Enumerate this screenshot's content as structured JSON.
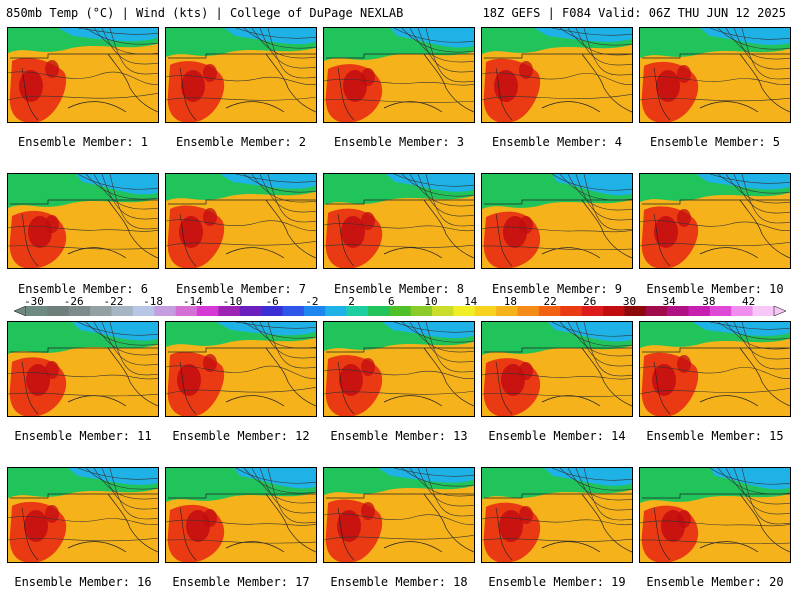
{
  "header": {
    "left": "850mb Temp (°C) | Wind (kts) | College of DuPage NEXLAB",
    "right": "18Z GEFS | F084 Valid: 06Z THU JUN 12 2025"
  },
  "panels": [
    {
      "label": "Ensemble Member: 1"
    },
    {
      "label": "Ensemble Member: 2"
    },
    {
      "label": "Ensemble Member: 3"
    },
    {
      "label": "Ensemble Member: 4"
    },
    {
      "label": "Ensemble Member: 5"
    },
    {
      "label": "Ensemble Member: 6"
    },
    {
      "label": "Ensemble Member: 7"
    },
    {
      "label": "Ensemble Member: 8"
    },
    {
      "label": "Ensemble Member: 9"
    },
    {
      "label": "Ensemble Member: 10"
    },
    {
      "label": "Ensemble Member: 11"
    },
    {
      "label": "Ensemble Member: 12"
    },
    {
      "label": "Ensemble Member: 13"
    },
    {
      "label": "Ensemble Member: 14"
    },
    {
      "label": "Ensemble Member: 15"
    },
    {
      "label": "Ensemble Member: 16"
    },
    {
      "label": "Ensemble Member: 17"
    },
    {
      "label": "Ensemble Member: 18"
    },
    {
      "label": "Ensemble Member: 19"
    },
    {
      "label": "Ensemble Member: 20"
    }
  ],
  "colorbar": {
    "tick_labels": [
      "-30",
      "-26",
      "-22",
      "-18",
      "-14",
      "-10",
      "-6",
      "-2",
      "2",
      "6",
      "10",
      "14",
      "18",
      "22",
      "26",
      "30",
      "34",
      "38",
      "42"
    ],
    "colors": [
      "#6e8a82",
      "#6f7f7b",
      "#7e8b8d",
      "#93a1a4",
      "#a7b4c4",
      "#b8c6e6",
      "#c59ee0",
      "#d46fd6",
      "#d63ad6",
      "#9d23b5",
      "#6c1fbf",
      "#3a2fd4",
      "#2d56e8",
      "#1f86f0",
      "#1fb2e6",
      "#1dcfa0",
      "#21c45a",
      "#4fbf2a",
      "#8acb2a",
      "#c9dd2a",
      "#f0ef26",
      "#f7d21f",
      "#f6b21a",
      "#f48c17",
      "#f26214",
      "#ea3a14",
      "#dc1b1b",
      "#c20d10",
      "#8c0a0a",
      "#a00b4c",
      "#b01285",
      "#c71fb0",
      "#de4ad6",
      "#f08ef0",
      "#f7c8f7"
    ]
  },
  "colors": {
    "cold": "#1fb2e6",
    "cool": "#21c45a",
    "warm": "#f6b21a",
    "hot": "#ea3a14",
    "very_hot": "#c20d10"
  }
}
